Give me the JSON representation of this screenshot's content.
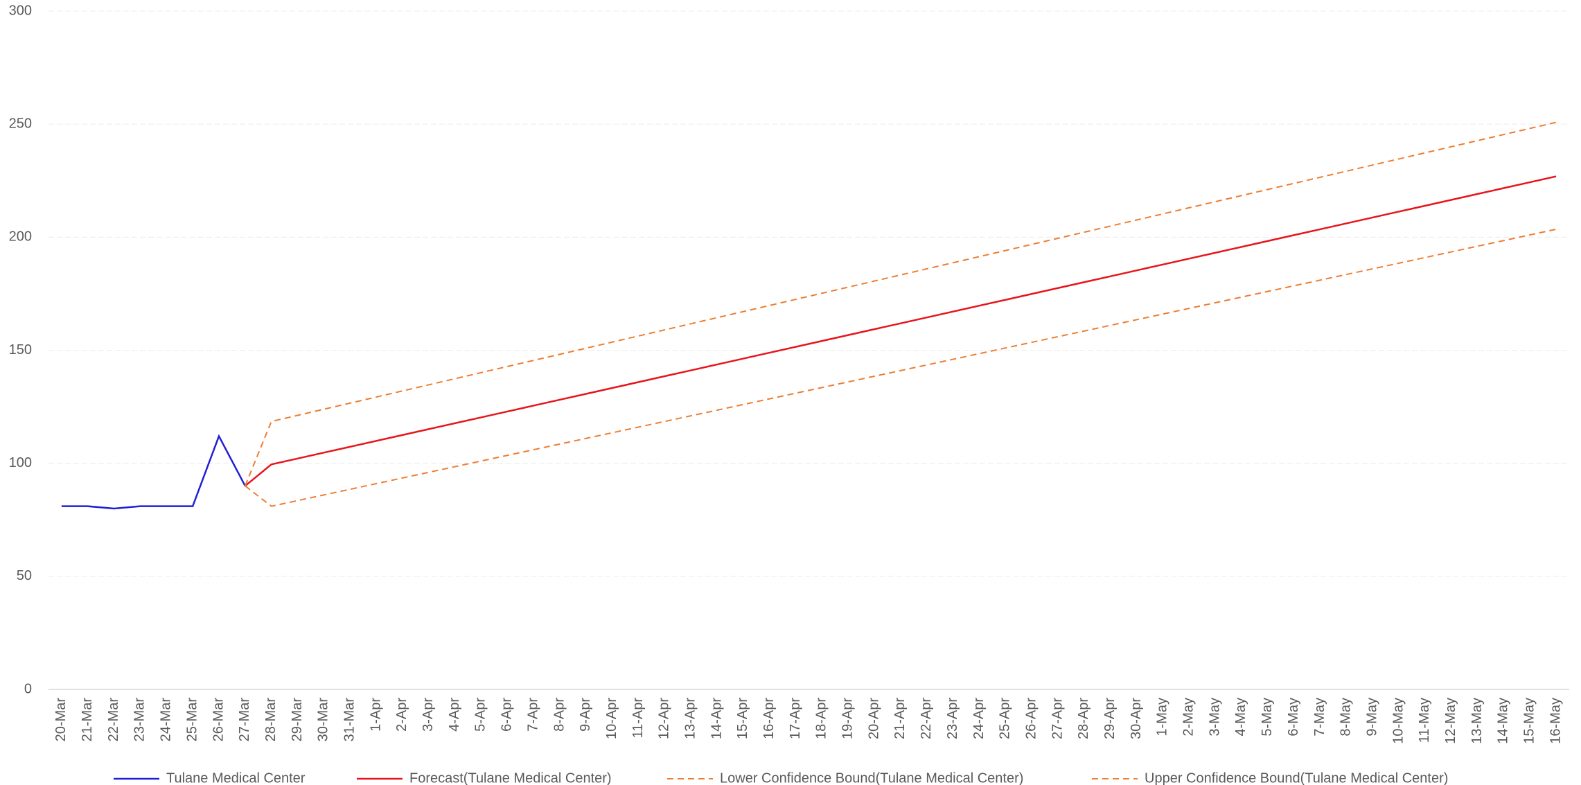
{
  "chart_data": {
    "type": "line",
    "categories": [
      "20-Mar",
      "21-Mar",
      "22-Mar",
      "23-Mar",
      "24-Mar",
      "25-Mar",
      "26-Mar",
      "27-Mar",
      "28-Mar",
      "29-Mar",
      "30-Mar",
      "31-Mar",
      "1-Apr",
      "2-Apr",
      "3-Apr",
      "4-Apr",
      "5-Apr",
      "6-Apr",
      "7-Apr",
      "8-Apr",
      "9-Apr",
      "10-Apr",
      "11-Apr",
      "12-Apr",
      "13-Apr",
      "14-Apr",
      "15-Apr",
      "16-Apr",
      "17-Apr",
      "18-Apr",
      "19-Apr",
      "20-Apr",
      "21-Apr",
      "22-Apr",
      "23-Apr",
      "24-Apr",
      "25-Apr",
      "26-Apr",
      "27-Apr",
      "28-Apr",
      "29-Apr",
      "30-Apr",
      "1-May",
      "2-May",
      "3-May",
      "4-May",
      "5-May",
      "6-May",
      "7-May",
      "8-May",
      "9-May",
      "10-May",
      "11-May",
      "12-May",
      "13-May",
      "14-May",
      "15-May",
      "16-May"
    ],
    "series": [
      {
        "name": "Tulane Medical Center",
        "color": "#1f1fd6",
        "line_style": "solid",
        "values": [
          81,
          81,
          80,
          81,
          81,
          81,
          112,
          90,
          null,
          null,
          null,
          null,
          null,
          null,
          null,
          null,
          null,
          null,
          null,
          null,
          null,
          null,
          null,
          null,
          null,
          null,
          null,
          null,
          null,
          null,
          null,
          null,
          null,
          null,
          null,
          null,
          null,
          null,
          null,
          null,
          null,
          null,
          null,
          null,
          null,
          null,
          null,
          null,
          null,
          null,
          null,
          null,
          null,
          null,
          null,
          null,
          null,
          null
        ]
      },
      {
        "name": "Forecast(Tulane Medical Center)",
        "color": "#e8141c",
        "line_style": "solid",
        "values": [
          null,
          null,
          null,
          null,
          null,
          null,
          null,
          90,
          99.5,
          102.1,
          104.7,
          107.3,
          109.9,
          112.5,
          115.1,
          117.7,
          120.3,
          122.9,
          125.5,
          128.1,
          130.7,
          133.3,
          135.9,
          138.5,
          141.1,
          143.7,
          146.3,
          148.9,
          151.5,
          154.1,
          156.7,
          159.3,
          161.9,
          164.5,
          167.1,
          169.7,
          172.3,
          174.9,
          177.5,
          180.1,
          182.7,
          185.3,
          187.9,
          190.5,
          193.1,
          195.7,
          198.3,
          200.9,
          203.5,
          206.1,
          208.7,
          211.3,
          213.9,
          216.5,
          219.1,
          221.7,
          224.3,
          226.9
        ]
      },
      {
        "name": "Lower Confidence Bound(Tulane Medical Center)",
        "color": "#ed7d31",
        "line_style": "dashed",
        "values": [
          null,
          null,
          null,
          null,
          null,
          null,
          null,
          90,
          81,
          83.5,
          86,
          88.5,
          91,
          93.5,
          96,
          98.5,
          101,
          103.5,
          106,
          108.5,
          111,
          113.5,
          116,
          118.5,
          121,
          123.5,
          126,
          128.5,
          131,
          133.5,
          136,
          138.5,
          141,
          143.5,
          146,
          148.5,
          151,
          153.5,
          156,
          158.5,
          161,
          163.5,
          166,
          168.5,
          171,
          173.5,
          176,
          178.5,
          181,
          183.5,
          186,
          188.5,
          191,
          193.5,
          196,
          198.5,
          201,
          203.5
        ]
      },
      {
        "name": "Upper Confidence Bound(Tulane Medical Center)",
        "color": "#ed7d31",
        "line_style": "dashed",
        "values": [
          null,
          null,
          null,
          null,
          null,
          null,
          null,
          90,
          118.5,
          121.2,
          123.9,
          126.6,
          129.3,
          132,
          134.7,
          137.4,
          140.1,
          142.8,
          145.5,
          148.2,
          150.9,
          153.6,
          156.3,
          159,
          161.7,
          164.4,
          167.1,
          169.8,
          172.5,
          175.2,
          177.9,
          180.6,
          183.3,
          186,
          188.7,
          191.4,
          194.1,
          196.8,
          199.5,
          202.2,
          204.9,
          207.6,
          210.3,
          213,
          215.7,
          218.4,
          221.1,
          223.8,
          226.5,
          229.2,
          231.9,
          234.6,
          237.3,
          240,
          242.7,
          245.4,
          248.1,
          250.8
        ]
      }
    ],
    "ylim": [
      0,
      300
    ],
    "yticks": [
      0,
      50,
      100,
      150,
      200,
      250,
      300
    ],
    "grid": true,
    "legend": "bottom"
  }
}
